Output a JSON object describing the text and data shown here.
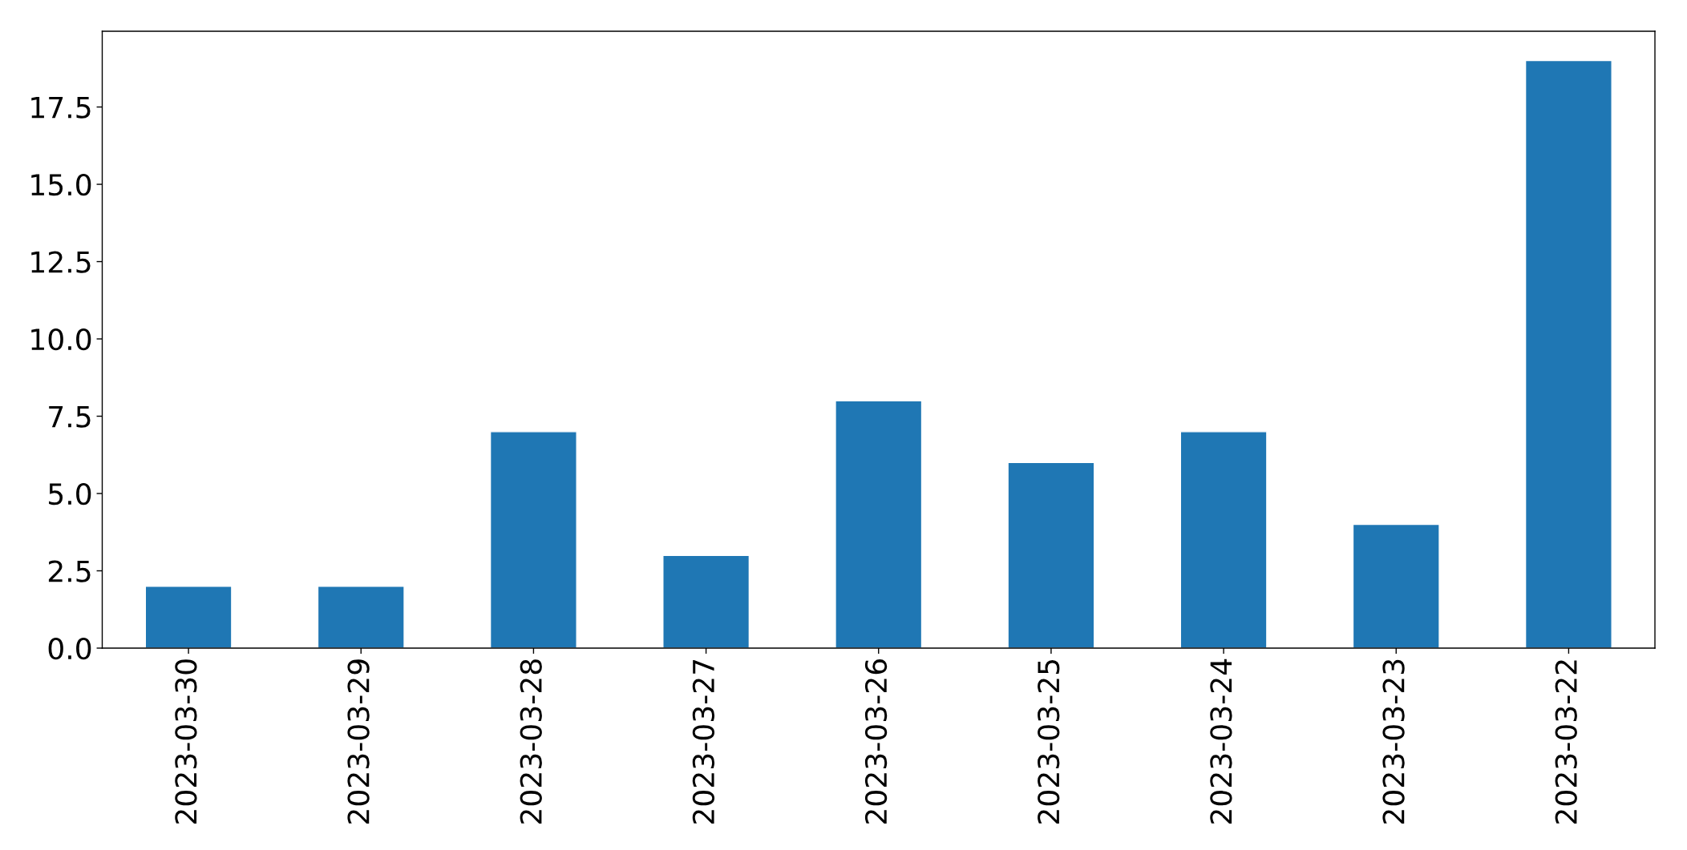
{
  "chart_data": {
    "type": "bar",
    "categories": [
      "2023-03-30",
      "2023-03-29",
      "2023-03-28",
      "2023-03-27",
      "2023-03-26",
      "2023-03-25",
      "2023-03-24",
      "2023-03-23",
      "2023-03-22"
    ],
    "values": [
      2,
      2,
      7,
      3,
      8,
      6,
      7,
      4,
      19
    ],
    "color": "#1f77b4",
    "ylim": [
      0,
      19.95
    ],
    "yticks": [
      {
        "value": 0,
        "label": "0.0"
      },
      {
        "value": 2.5,
        "label": "2.5"
      },
      {
        "value": 5,
        "label": "5.0"
      },
      {
        "value": 7.5,
        "label": "7.5"
      },
      {
        "value": 10,
        "label": "10.0"
      },
      {
        "value": 12.5,
        "label": "12.5"
      },
      {
        "value": 15,
        "label": "15.0"
      },
      {
        "value": 17.5,
        "label": "17.5"
      }
    ],
    "grid": false,
    "legend": false
  }
}
